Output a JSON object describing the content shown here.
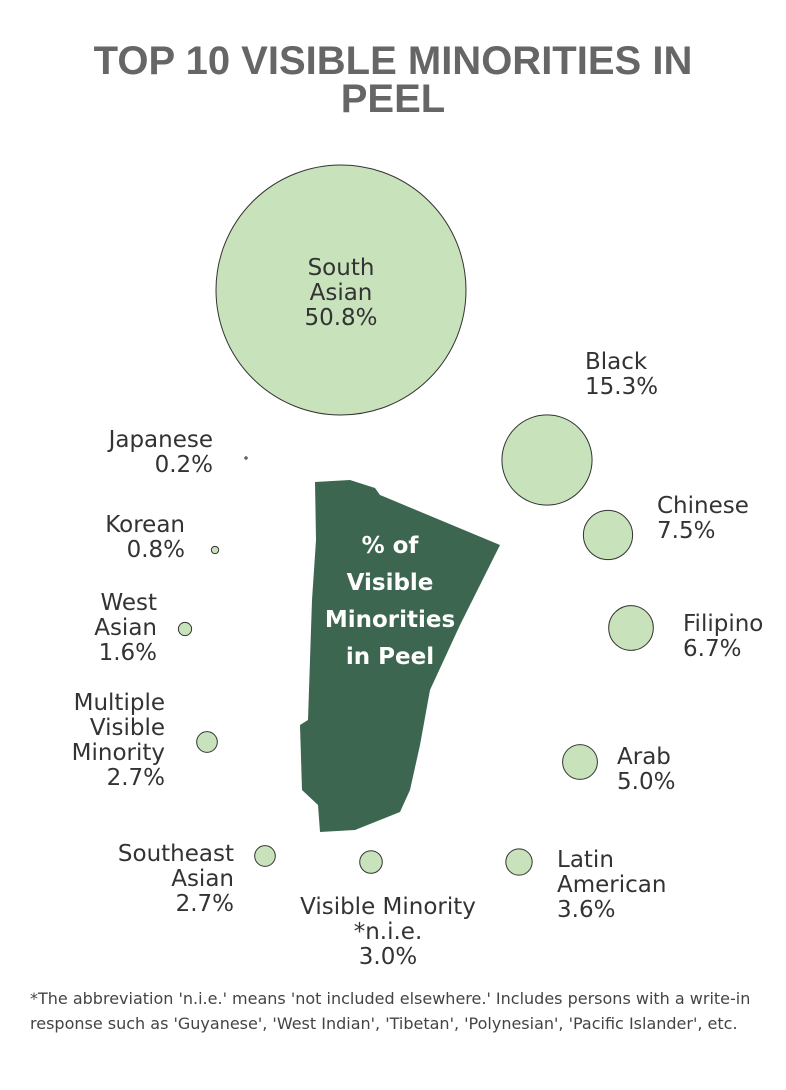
{
  "chart_data": {
    "type": "bubble",
    "title": "TOP 10 VISIBLE MINORITIES IN PEEL",
    "center_label": "% of Visible Minorities in Peel",
    "categories": [
      "South Asian",
      "Black",
      "Chinese",
      "Filipino",
      "Arab",
      "Latin American",
      "Visible Minority *n.i.e.",
      "Southeast Asian",
      "Multiple Visible Minority",
      "West Asian",
      "Korean",
      "Japanese"
    ],
    "values": [
      50.8,
      15.3,
      7.5,
      6.7,
      5.0,
      3.6,
      3.0,
      2.7,
      2.7,
      1.6,
      0.8,
      0.2
    ],
    "value_labels": [
      "50.8%",
      "15.3%",
      "7.5%",
      "6.7%",
      "5.0%",
      "3.6%",
      "3.0%",
      "2.7%",
      "2.7%",
      "1.6%",
      "0.8%",
      "0.2%"
    ],
    "color": "#c8e3bc",
    "footnote": "*The abbreviation 'n.i.e.' means 'not included elsewhere.' Includes persons with a write-in response such as 'Guyanese', 'West Indian', 'Tibetan', 'Polynesian', 'Pacific Islander', etc."
  }
}
